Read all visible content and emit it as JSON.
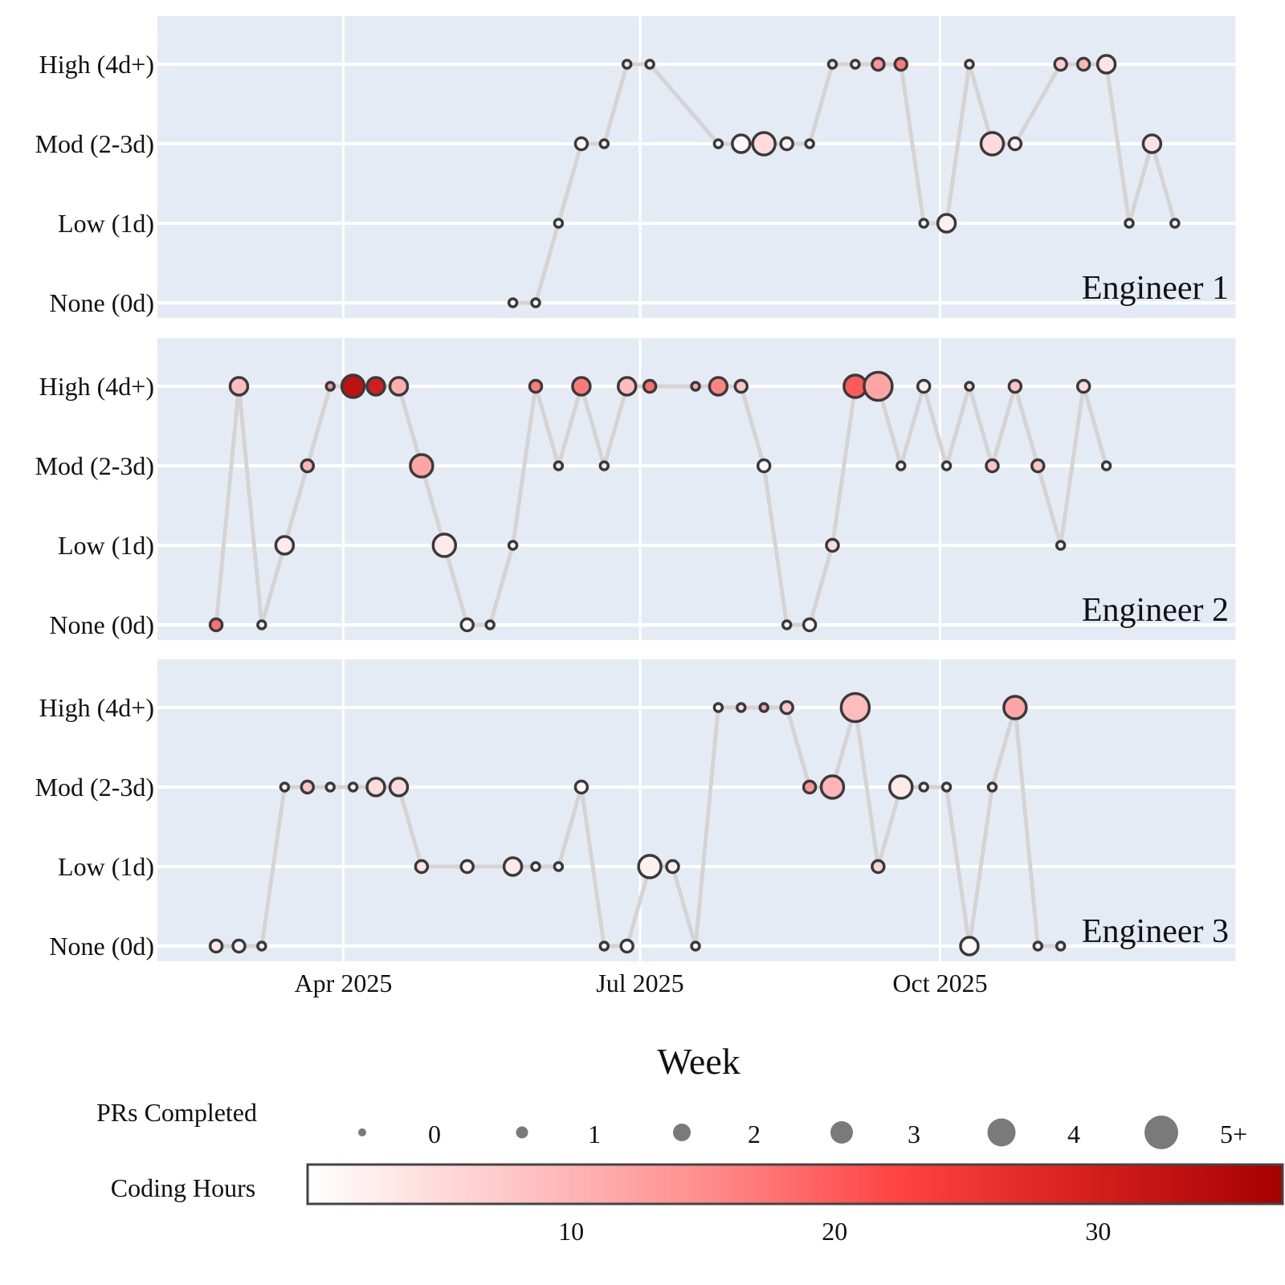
{
  "chart_data": {
    "type": "scatter",
    "xlabel": "Week",
    "x_ticks": [
      {
        "label": "Apr 2025",
        "date": "2025-04-01"
      },
      {
        "label": "Jul 2025",
        "date": "2025-07-01"
      },
      {
        "label": "Oct 2025",
        "date": "2025-10-01"
      }
    ],
    "xlim": [
      "2025-02-03",
      "2025-12-31"
    ],
    "y_categories": [
      "None (0d)",
      "Low (1d)",
      "Mod (2-3d)",
      "High (4d+)"
    ],
    "size_legend": {
      "title": "PRs Completed",
      "labels": [
        "0",
        "1",
        "2",
        "3",
        "4",
        "5+"
      ]
    },
    "color_legend": {
      "title": "Coding Hours",
      "ticks": [
        10,
        20,
        30
      ],
      "range": [
        0,
        37
      ],
      "colors": [
        "#ffffff",
        "#ffc9c9",
        "#ff8f8f",
        "#ff4444",
        "#d61f1f",
        "#a60000"
      ]
    },
    "grid": true,
    "line_color": "#d6d3d3",
    "panel_bg": "#e5ebf5",
    "series": [
      {
        "name": "Engineer 1",
        "points": [
          {
            "x": "2025-05-23",
            "level": 0,
            "prs": 0,
            "hours": 1
          },
          {
            "x": "2025-05-30",
            "level": 0,
            "prs": 0,
            "hours": 1
          },
          {
            "x": "2025-06-06",
            "level": 1,
            "prs": 0,
            "hours": 1
          },
          {
            "x": "2025-06-13",
            "level": 2,
            "prs": 1,
            "hours": 1
          },
          {
            "x": "2025-06-20",
            "level": 2,
            "prs": 0,
            "hours": 1
          },
          {
            "x": "2025-06-27",
            "level": 3,
            "prs": 0,
            "hours": 4
          },
          {
            "x": "2025-07-04",
            "level": 3,
            "prs": 0,
            "hours": 2
          },
          {
            "x": "2025-07-25",
            "level": 2,
            "prs": 0,
            "hours": 1
          },
          {
            "x": "2025-08-01",
            "level": 2,
            "prs": 2,
            "hours": 1
          },
          {
            "x": "2025-08-08",
            "level": 2,
            "prs": 3,
            "hours": 5
          },
          {
            "x": "2025-08-15",
            "level": 2,
            "prs": 1,
            "hours": 2
          },
          {
            "x": "2025-08-22",
            "level": 2,
            "prs": 0,
            "hours": 1
          },
          {
            "x": "2025-08-29",
            "level": 3,
            "prs": 0,
            "hours": 5
          },
          {
            "x": "2025-09-05",
            "level": 3,
            "prs": 0,
            "hours": 3
          },
          {
            "x": "2025-09-12",
            "level": 3,
            "prs": 1,
            "hours": 14
          },
          {
            "x": "2025-09-19",
            "level": 3,
            "prs": 1,
            "hours": 17
          },
          {
            "x": "2025-09-26",
            "level": 1,
            "prs": 0,
            "hours": 1
          },
          {
            "x": "2025-10-03",
            "level": 1,
            "prs": 2,
            "hours": 2
          },
          {
            "x": "2025-10-10",
            "level": 3,
            "prs": 0,
            "hours": 3
          },
          {
            "x": "2025-10-17",
            "level": 2,
            "prs": 3,
            "hours": 5
          },
          {
            "x": "2025-10-24",
            "level": 2,
            "prs": 1,
            "hours": 2
          },
          {
            "x": "2025-11-07",
            "level": 3,
            "prs": 1,
            "hours": 7
          },
          {
            "x": "2025-11-14",
            "level": 3,
            "prs": 1,
            "hours": 10
          },
          {
            "x": "2025-11-21",
            "level": 3,
            "prs": 2,
            "hours": 4
          },
          {
            "x": "2025-11-28",
            "level": 1,
            "prs": 0,
            "hours": 1
          },
          {
            "x": "2025-12-05",
            "level": 2,
            "prs": 2,
            "hours": 4
          },
          {
            "x": "2025-12-12",
            "level": 1,
            "prs": 0,
            "hours": 1
          }
        ]
      },
      {
        "name": "Engineer 2",
        "points": [
          {
            "x": "2025-02-21",
            "level": 0,
            "prs": 1,
            "hours": 18
          },
          {
            "x": "2025-02-28",
            "level": 3,
            "prs": 2,
            "hours": 9
          },
          {
            "x": "2025-03-07",
            "level": 0,
            "prs": 0,
            "hours": 1
          },
          {
            "x": "2025-03-14",
            "level": 1,
            "prs": 2,
            "hours": 3
          },
          {
            "x": "2025-03-21",
            "level": 2,
            "prs": 1,
            "hours": 10
          },
          {
            "x": "2025-03-28",
            "level": 3,
            "prs": 0,
            "hours": 14
          },
          {
            "x": "2025-04-04",
            "level": 3,
            "prs": 3,
            "hours": 33
          },
          {
            "x": "2025-04-11",
            "level": 3,
            "prs": 2,
            "hours": 30
          },
          {
            "x": "2025-04-18",
            "level": 3,
            "prs": 2,
            "hours": 11
          },
          {
            "x": "2025-04-25",
            "level": 2,
            "prs": 3,
            "hours": 12
          },
          {
            "x": "2025-05-02",
            "level": 1,
            "prs": 3,
            "hours": 3
          },
          {
            "x": "2025-05-09",
            "level": 0,
            "prs": 1,
            "hours": 1
          },
          {
            "x": "2025-05-16",
            "level": 0,
            "prs": 0,
            "hours": 1
          },
          {
            "x": "2025-05-23",
            "level": 1,
            "prs": 0,
            "hours": 1
          },
          {
            "x": "2025-05-30",
            "level": 3,
            "prs": 1,
            "hours": 17
          },
          {
            "x": "2025-06-06",
            "level": 2,
            "prs": 0,
            "hours": 3
          },
          {
            "x": "2025-06-13",
            "level": 3,
            "prs": 2,
            "hours": 17
          },
          {
            "x": "2025-06-20",
            "level": 2,
            "prs": 0,
            "hours": 3
          },
          {
            "x": "2025-06-27",
            "level": 3,
            "prs": 2,
            "hours": 9
          },
          {
            "x": "2025-07-04",
            "level": 3,
            "prs": 1,
            "hours": 18
          },
          {
            "x": "2025-07-18",
            "level": 3,
            "prs": 0,
            "hours": 12
          },
          {
            "x": "2025-07-25",
            "level": 3,
            "prs": 2,
            "hours": 16
          },
          {
            "x": "2025-08-01",
            "level": 3,
            "prs": 1,
            "hours": 8
          },
          {
            "x": "2025-08-08",
            "level": 2,
            "prs": 1,
            "hours": 1
          },
          {
            "x": "2025-08-15",
            "level": 0,
            "prs": 0,
            "hours": 1
          },
          {
            "x": "2025-08-22",
            "level": 0,
            "prs": 1,
            "hours": 1
          },
          {
            "x": "2025-08-29",
            "level": 1,
            "prs": 1,
            "hours": 5
          },
          {
            "x": "2025-09-05",
            "level": 3,
            "prs": 3,
            "hours": 20
          },
          {
            "x": "2025-09-12",
            "level": 3,
            "prs": 4,
            "hours": 12
          },
          {
            "x": "2025-09-19",
            "level": 2,
            "prs": 0,
            "hours": 1
          },
          {
            "x": "2025-09-26",
            "level": 3,
            "prs": 1,
            "hours": 2
          },
          {
            "x": "2025-10-03",
            "level": 2,
            "prs": 0,
            "hours": 1
          },
          {
            "x": "2025-10-10",
            "level": 3,
            "prs": 0,
            "hours": 5
          },
          {
            "x": "2025-10-17",
            "level": 2,
            "prs": 1,
            "hours": 8
          },
          {
            "x": "2025-10-24",
            "level": 3,
            "prs": 1,
            "hours": 8
          },
          {
            "x": "2025-10-31",
            "level": 2,
            "prs": 1,
            "hours": 8
          },
          {
            "x": "2025-11-07",
            "level": 1,
            "prs": 0,
            "hours": 1
          },
          {
            "x": "2025-11-14",
            "level": 3,
            "prs": 1,
            "hours": 5
          },
          {
            "x": "2025-11-21",
            "level": 2,
            "prs": 0,
            "hours": 1
          }
        ]
      },
      {
        "name": "Engineer 3",
        "points": [
          {
            "x": "2025-02-21",
            "level": 0,
            "prs": 1,
            "hours": 3
          },
          {
            "x": "2025-02-28",
            "level": 0,
            "prs": 1,
            "hours": 2
          },
          {
            "x": "2025-03-07",
            "level": 0,
            "prs": 0,
            "hours": 2
          },
          {
            "x": "2025-03-14",
            "level": 2,
            "prs": 0,
            "hours": 2
          },
          {
            "x": "2025-03-21",
            "level": 2,
            "prs": 1,
            "hours": 8
          },
          {
            "x": "2025-03-28",
            "level": 2,
            "prs": 0,
            "hours": 2
          },
          {
            "x": "2025-04-04",
            "level": 2,
            "prs": 0,
            "hours": 2
          },
          {
            "x": "2025-04-11",
            "level": 2,
            "prs": 2,
            "hours": 5
          },
          {
            "x": "2025-04-18",
            "level": 2,
            "prs": 2,
            "hours": 5
          },
          {
            "x": "2025-04-25",
            "level": 1,
            "prs": 1,
            "hours": 4
          },
          {
            "x": "2025-05-09",
            "level": 1,
            "prs": 1,
            "hours": 2
          },
          {
            "x": "2025-05-23",
            "level": 1,
            "prs": 2,
            "hours": 3
          },
          {
            "x": "2025-05-30",
            "level": 1,
            "prs": 0,
            "hours": 1
          },
          {
            "x": "2025-06-06",
            "level": 1,
            "prs": 0,
            "hours": 1
          },
          {
            "x": "2025-06-13",
            "level": 2,
            "prs": 1,
            "hours": 1
          },
          {
            "x": "2025-06-20",
            "level": 0,
            "prs": 0,
            "hours": 1
          },
          {
            "x": "2025-06-27",
            "level": 0,
            "prs": 1,
            "hours": 1
          },
          {
            "x": "2025-07-04",
            "level": 1,
            "prs": 3,
            "hours": 2
          },
          {
            "x": "2025-07-11",
            "level": 1,
            "prs": 1,
            "hours": 2
          },
          {
            "x": "2025-07-18",
            "level": 0,
            "prs": 0,
            "hours": 1
          },
          {
            "x": "2025-07-25",
            "level": 3,
            "prs": 0,
            "hours": 1
          },
          {
            "x": "2025-08-01",
            "level": 3,
            "prs": 0,
            "hours": 5
          },
          {
            "x": "2025-08-08",
            "level": 3,
            "prs": 0,
            "hours": 12
          },
          {
            "x": "2025-08-15",
            "level": 3,
            "prs": 1,
            "hours": 8
          },
          {
            "x": "2025-08-22",
            "level": 2,
            "prs": 1,
            "hours": 14
          },
          {
            "x": "2025-08-29",
            "level": 2,
            "prs": 3,
            "hours": 10
          },
          {
            "x": "2025-09-05",
            "level": 3,
            "prs": 4,
            "hours": 9
          },
          {
            "x": "2025-09-12",
            "level": 1,
            "prs": 1,
            "hours": 6
          },
          {
            "x": "2025-09-19",
            "level": 2,
            "prs": 3,
            "hours": 3
          },
          {
            "x": "2025-09-26",
            "level": 2,
            "prs": 0,
            "hours": 2
          },
          {
            "x": "2025-10-03",
            "level": 2,
            "prs": 0,
            "hours": 2
          },
          {
            "x": "2025-10-10",
            "level": 0,
            "prs": 2,
            "hours": 1
          },
          {
            "x": "2025-10-17",
            "level": 2,
            "prs": 0,
            "hours": 3
          },
          {
            "x": "2025-10-24",
            "level": 3,
            "prs": 3,
            "hours": 12
          },
          {
            "x": "2025-10-31",
            "level": 0,
            "prs": 0,
            "hours": 2
          },
          {
            "x": "2025-11-07",
            "level": 0,
            "prs": 0,
            "hours": 2
          }
        ]
      }
    ]
  }
}
